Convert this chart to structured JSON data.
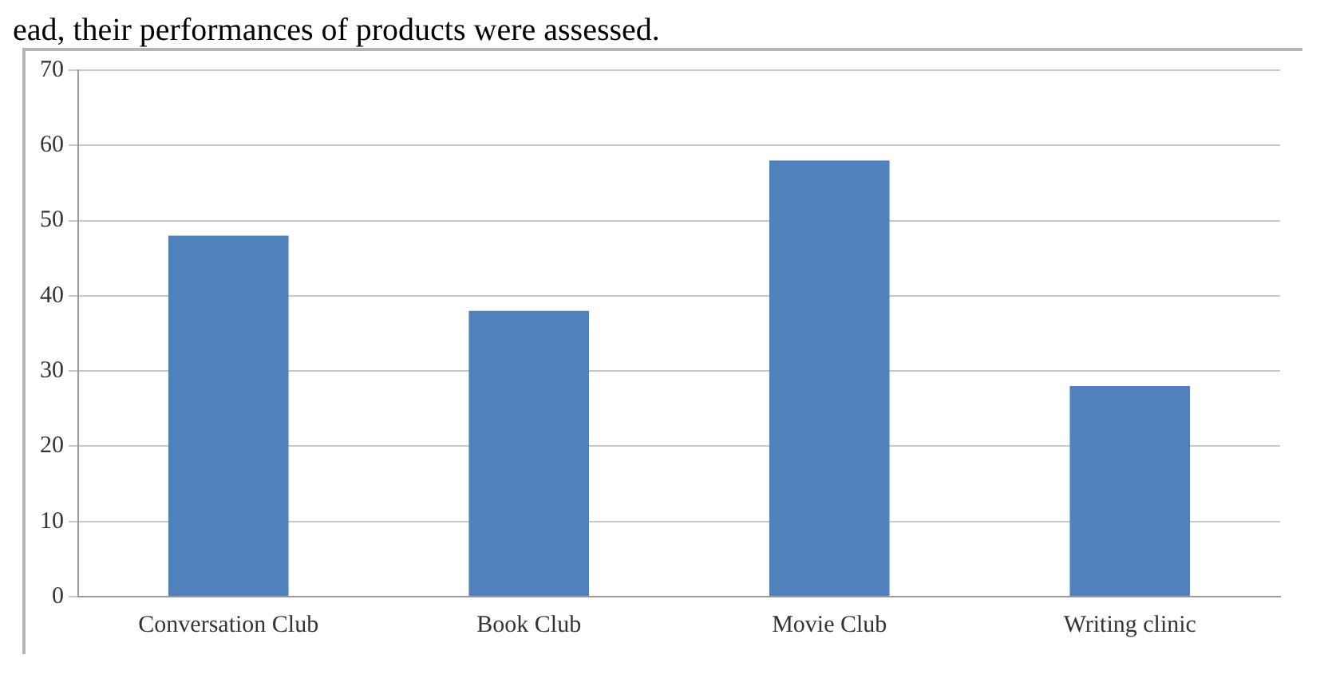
{
  "chart_data": {
    "type": "bar",
    "annotations": [
      "ead, their performances of products were assessed."
    ],
    "categories": [
      "Conversation Club",
      "Book Club",
      "Movie Club",
      "Writing clinic"
    ],
    "values": [
      48,
      38,
      58,
      28
    ],
    "color": "#4f81bd",
    "ylim": [
      0,
      70
    ],
    "yticks": [
      0,
      10,
      20,
      30,
      40,
      50,
      60,
      70
    ],
    "grid": "y"
  }
}
